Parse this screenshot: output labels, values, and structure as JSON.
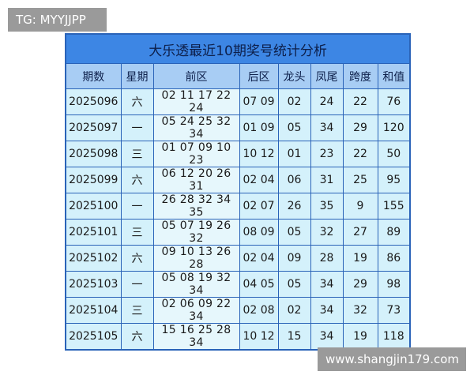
{
  "header": {
    "watermark": "TG: MYYJJPP"
  },
  "table": {
    "title": "大乐透最近10期奖号统计分析",
    "columns": [
      "期数",
      "星期",
      "前区",
      "后区",
      "龙头",
      "凤尾",
      "跨度",
      "和值"
    ],
    "rows": [
      [
        "2025096",
        "六",
        "02 11 17 22 24",
        "07 09",
        "02",
        "24",
        "22",
        "76"
      ],
      [
        "2025097",
        "一",
        "05 24 25 32 34",
        "01 09",
        "05",
        "34",
        "29",
        "120"
      ],
      [
        "2025098",
        "三",
        "01 07 09 10 23",
        "10 12",
        "01",
        "23",
        "22",
        "50"
      ],
      [
        "2025099",
        "六",
        "06 12 20 26 31",
        "02 04",
        "06",
        "31",
        "25",
        "95"
      ],
      [
        "2025100",
        "一",
        "26 28 32 34 35",
        "02 07",
        "26",
        "35",
        "9",
        "155"
      ],
      [
        "2025101",
        "三",
        "05 07 19 26 32",
        "08 09",
        "05",
        "32",
        "27",
        "89"
      ],
      [
        "2025102",
        "六",
        "09 10 13 26 28",
        "02 04",
        "09",
        "28",
        "19",
        "86"
      ],
      [
        "2025103",
        "一",
        "05 08 19 32 34",
        "04 05",
        "05",
        "34",
        "29",
        "98"
      ],
      [
        "2025104",
        "三",
        "02 06 09 22 34",
        "02 08",
        "02",
        "34",
        "32",
        "73"
      ],
      [
        "2025105",
        "六",
        "15 16 25 28 34",
        "10 12",
        "15",
        "34",
        "19",
        "118"
      ]
    ]
  },
  "footer": {
    "watermark": "www.shangjin179.com"
  }
}
